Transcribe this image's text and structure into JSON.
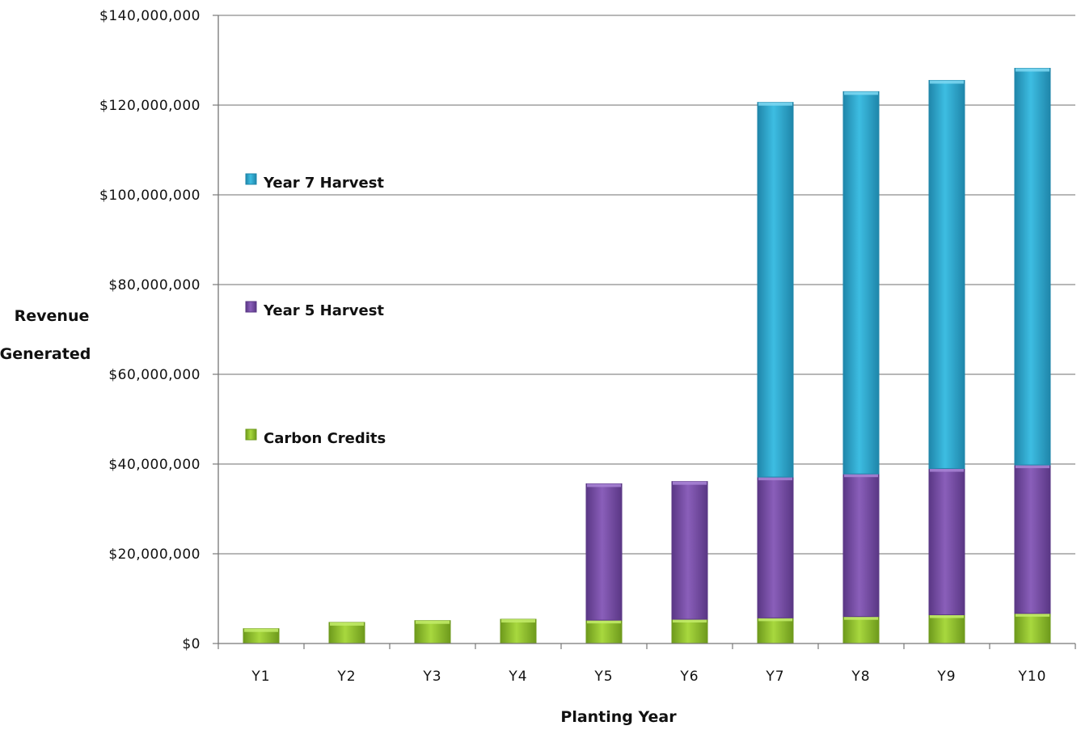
{
  "chart_data": {
    "type": "bar",
    "stacked": true,
    "title": "",
    "xlabel": "Planting Year",
    "ylabel_lines": [
      "Revenue",
      "Generated"
    ],
    "categories": [
      "Y1",
      "Y2",
      "Y3",
      "Y4",
      "Y5",
      "Y6",
      "Y7",
      "Y8",
      "Y9",
      "Y10"
    ],
    "ylim": [
      0,
      140000000
    ],
    "y_ticks": [
      0,
      20000000,
      40000000,
      60000000,
      80000000,
      100000000,
      120000000,
      140000000
    ],
    "y_tick_labels": [
      "$0",
      "$20,000,000",
      "$40,000,000",
      "$60,000,000",
      "$80,000,000",
      "$100,000,000",
      "$120,000,000",
      "$140,000,000"
    ],
    "grid": true,
    "legend_position": "left",
    "series": [
      {
        "name": "Carbon Credits",
        "color": "#9acd32",
        "values": [
          3300000,
          4700000,
          5100000,
          5400000,
          5200000,
          5400000,
          5700000,
          6000000,
          6400000,
          6700000
        ]
      },
      {
        "name": "Year 5 Harvest",
        "color": "#7b4fa8",
        "values": [
          0,
          0,
          0,
          0,
          30400000,
          30700000,
          31400000,
          31800000,
          32600000,
          33100000
        ]
      },
      {
        "name": "Year 7 Harvest",
        "color": "#2fa8d0",
        "values": [
          0,
          0,
          0,
          0,
          0,
          0,
          83500000,
          85200000,
          86500000,
          88400000
        ]
      }
    ],
    "legend_order": [
      "Year 7 Harvest",
      "Year 5 Harvest",
      "Carbon Credits"
    ]
  }
}
